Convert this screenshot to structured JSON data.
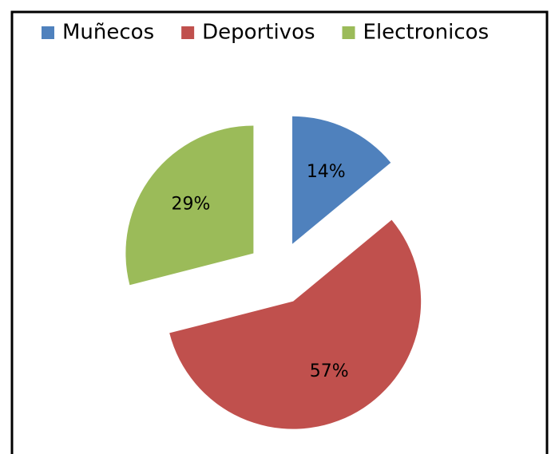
{
  "chart_data": {
    "type": "pie",
    "categories": [
      "Muñecos",
      "Deportivos",
      "Electronicos"
    ],
    "values": [
      14,
      57,
      29
    ],
    "value_labels": [
      "14%",
      "57%",
      "29%"
    ],
    "colors": [
      "#4f81bd",
      "#c0504d",
      "#9bbb59"
    ],
    "legend": "top"
  }
}
